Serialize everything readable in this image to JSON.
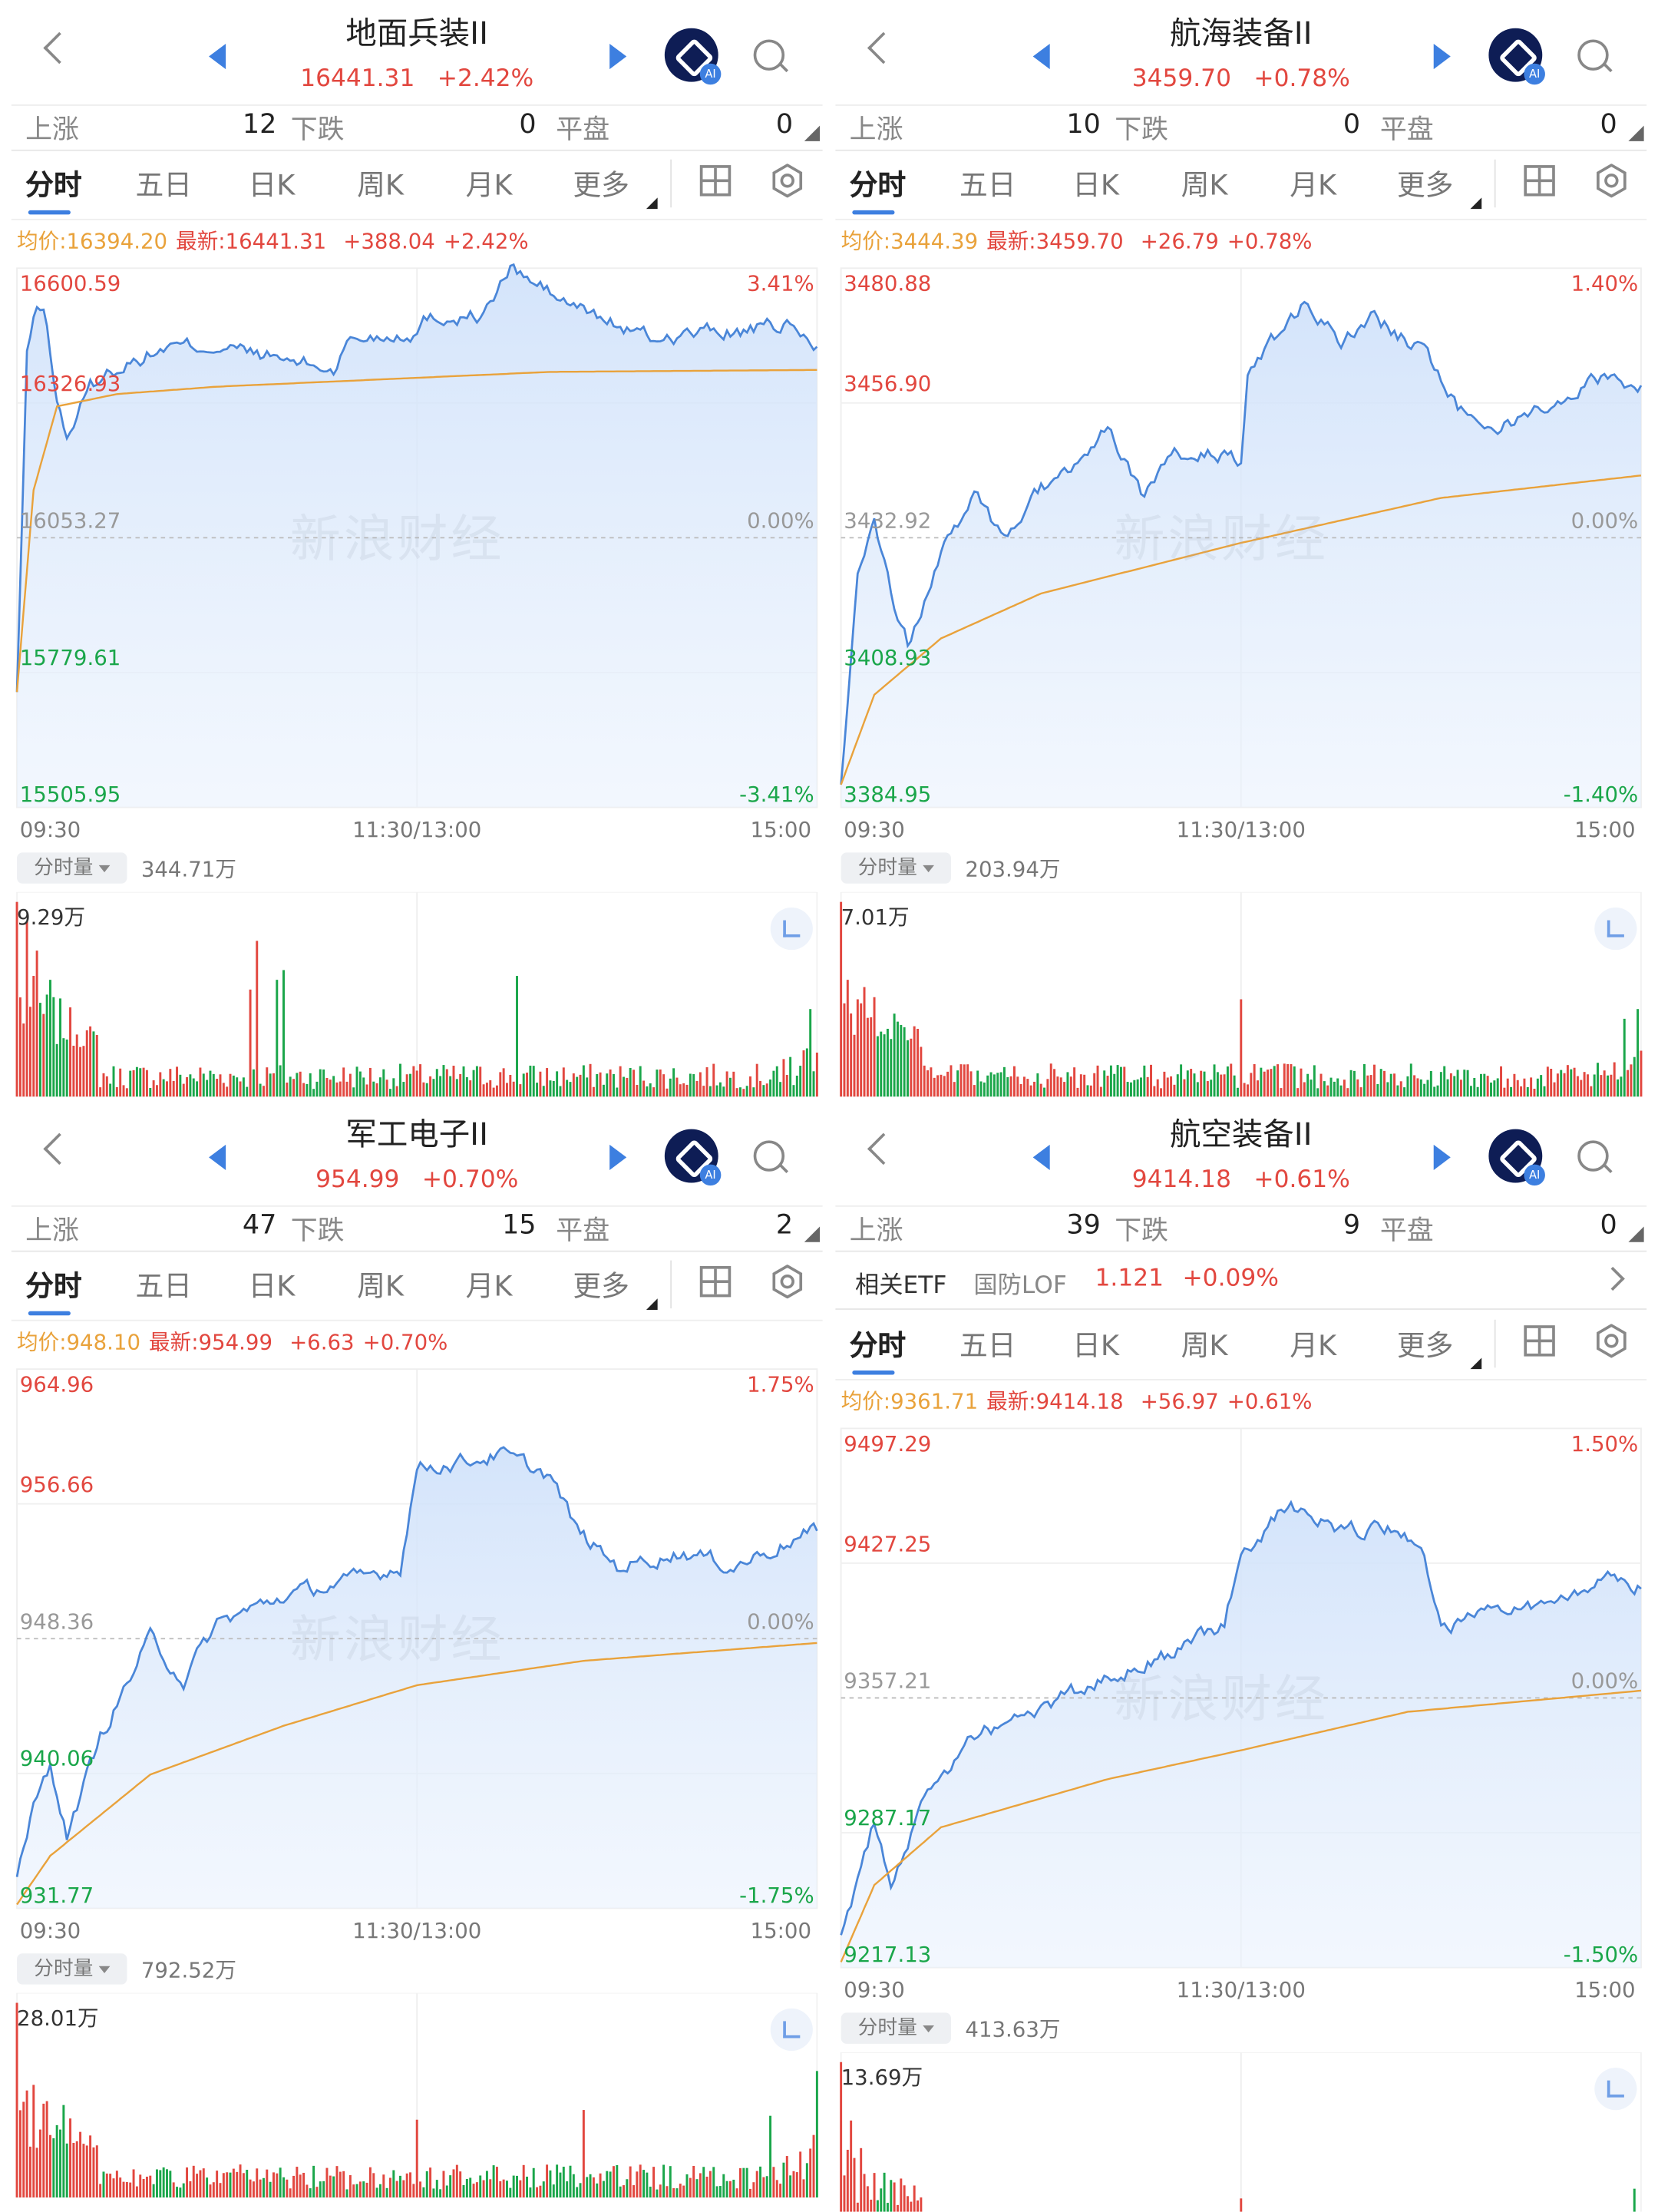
{
  "watermark": "新浪财经",
  "colors": {
    "up": "#e2473f",
    "down": "#1aa64a",
    "avg": "#e9a23b",
    "line": "#4a86d8",
    "accent": "#3d7fe0",
    "gray": "#888888"
  },
  "tabs": [
    "分时",
    "五日",
    "日K",
    "周K",
    "月K",
    "更多"
  ],
  "stats_labels": {
    "up": "上涨",
    "down": "下跌",
    "flat": "平盘"
  },
  "time_labels": [
    "09:30",
    "11:30/13:00",
    "15:00"
  ],
  "volume_button": "分时量",
  "avg_prefix": "均价:",
  "last_prefix": "最新:",
  "panels": [
    {
      "title": "地面兵装II",
      "price": "16441.31",
      "change_pct": "+2.42%",
      "stats": {
        "up": "12",
        "down": "0",
        "flat": "0"
      },
      "info": {
        "avg": "16394.20",
        "last": "16441.31",
        "change": "+388.04",
        "pct": "+2.42%"
      },
      "y_labels": [
        "16600.59",
        "16326.93",
        "16053.27",
        "15779.61",
        "15505.95"
      ],
      "pct_labels": [
        "3.41%",
        "0.00%",
        "-3.41%"
      ],
      "volume_total": "344.71万",
      "volume_max": "9.29万",
      "price_series": [
        [
          0,
          15740
        ],
        [
          3,
          16420
        ],
        [
          5,
          16500
        ],
        [
          8,
          16529
        ],
        [
          12,
          16330
        ],
        [
          15,
          16257
        ],
        [
          22,
          16360
        ],
        [
          30,
          16400
        ],
        [
          45,
          16440
        ],
        [
          60,
          16443
        ],
        [
          80,
          16414
        ],
        [
          95,
          16395
        ],
        [
          100,
          16457
        ],
        [
          120,
          16472
        ],
        [
          123,
          16500
        ],
        [
          140,
          16505
        ],
        [
          148,
          16600
        ],
        [
          165,
          16529
        ],
        [
          190,
          16457
        ],
        [
          205,
          16470
        ],
        [
          220,
          16472
        ],
        [
          230,
          16486
        ],
        [
          240,
          16441
        ]
      ],
      "avg_series": [
        [
          0,
          15740
        ],
        [
          5,
          16150
        ],
        [
          12,
          16320
        ],
        [
          30,
          16345
        ],
        [
          60,
          16360
        ],
        [
          120,
          16378
        ],
        [
          160,
          16390
        ],
        [
          240,
          16394
        ]
      ],
      "volume_spikes": [
        [
          0,
          1.0
        ],
        [
          3,
          0.9
        ],
        [
          6,
          0.75
        ],
        [
          10,
          0.6
        ],
        [
          70,
          0.55
        ],
        [
          72,
          0.8
        ],
        [
          78,
          0.6
        ],
        [
          80,
          0.65
        ],
        [
          150,
          0.62
        ],
        [
          238,
          0.45
        ]
      ]
    },
    {
      "title": "航海装备II",
      "price": "3459.70",
      "change_pct": "+0.78%",
      "stats": {
        "up": "10",
        "down": "0",
        "flat": "0"
      },
      "info": {
        "avg": "3444.39",
        "last": "3459.70",
        "change": "+26.79",
        "pct": "+0.78%"
      },
      "y_labels": [
        "3480.88",
        "3456.90",
        "3432.92",
        "3408.93",
        "3384.95"
      ],
      "pct_labels": [
        "1.40%",
        "0.00%",
        "-1.40%"
      ],
      "volume_total": "203.94万",
      "volume_max": "7.01万",
      "price_series": [
        [
          0,
          3389
        ],
        [
          5,
          3428
        ],
        [
          10,
          3436
        ],
        [
          15,
          3423
        ],
        [
          20,
          3414
        ],
        [
          30,
          3430
        ],
        [
          40,
          3440
        ],
        [
          50,
          3432
        ],
        [
          60,
          3442
        ],
        [
          70,
          3445
        ],
        [
          80,
          3452
        ],
        [
          90,
          3440
        ],
        [
          100,
          3447
        ],
        [
          110,
          3449
        ],
        [
          120,
          3446
        ],
        [
          122,
          3463
        ],
        [
          135,
          3471
        ],
        [
          140,
          3475
        ],
        [
          150,
          3468
        ],
        [
          160,
          3472
        ],
        [
          175,
          3466
        ],
        [
          185,
          3456
        ],
        [
          200,
          3453
        ],
        [
          215,
          3458
        ],
        [
          230,
          3462
        ],
        [
          240,
          3460
        ]
      ],
      "avg_series": [
        [
          0,
          3389
        ],
        [
          10,
          3405
        ],
        [
          30,
          3415
        ],
        [
          60,
          3423
        ],
        [
          120,
          3432
        ],
        [
          180,
          3440
        ],
        [
          240,
          3444
        ]
      ],
      "volume_spikes": [
        [
          0,
          1.0
        ],
        [
          2,
          0.6
        ],
        [
          5,
          0.5
        ],
        [
          120,
          0.5
        ],
        [
          235,
          0.4
        ],
        [
          239,
          0.45
        ]
      ]
    },
    {
      "title": "军工电子II",
      "price": "954.99",
      "change_pct": "+0.70%",
      "stats": {
        "up": "47",
        "down": "15",
        "flat": "2"
      },
      "info": {
        "avg": "948.10",
        "last": "954.99",
        "change": "+6.63",
        "pct": "+0.70%"
      },
      "y_labels": [
        "964.96",
        "956.66",
        "948.36",
        "940.06",
        "931.77"
      ],
      "pct_labels": [
        "1.75%",
        "0.00%",
        "-1.75%"
      ],
      "volume_total": "792.52万",
      "volume_max": "28.01万",
      "price_series": [
        [
          0,
          933.7
        ],
        [
          5,
          938
        ],
        [
          10,
          940.6
        ],
        [
          15,
          936.2
        ],
        [
          25,
          942.3
        ],
        [
          40,
          948.4
        ],
        [
          50,
          945.8
        ],
        [
          60,
          949.3
        ],
        [
          80,
          951
        ],
        [
          100,
          951.9
        ],
        [
          115,
          952.8
        ],
        [
          120,
          958.9
        ],
        [
          135,
          959.3
        ],
        [
          145,
          959.7
        ],
        [
          160,
          958.4
        ],
        [
          168,
          955
        ],
        [
          180,
          952.8
        ],
        [
          200,
          953.7
        ],
        [
          215,
          952.8
        ],
        [
          230,
          954.2
        ],
        [
          240,
          955
        ]
      ],
      "avg_series": [
        [
          0,
          932
        ],
        [
          10,
          935
        ],
        [
          40,
          940
        ],
        [
          80,
          943
        ],
        [
          120,
          945.5
        ],
        [
          170,
          947
        ],
        [
          240,
          948.1
        ]
      ],
      "volume_spikes": [
        [
          0,
          1.0
        ],
        [
          3,
          0.55
        ],
        [
          120,
          0.4
        ],
        [
          170,
          0.45
        ],
        [
          226,
          0.42
        ],
        [
          240,
          0.65
        ]
      ]
    },
    {
      "title": "航空装备II",
      "price": "9414.18",
      "change_pct": "+0.61%",
      "stats": {
        "up": "39",
        "down": "9",
        "flat": "0"
      },
      "etf": {
        "label": "相关ETF",
        "name": "国防LOF",
        "price": "1.121",
        "pct": "+0.09%"
      },
      "info": {
        "avg": "9361.71",
        "last": "9414.18",
        "change": "+56.97",
        "pct": "+0.61%"
      },
      "y_labels": [
        "9497.29",
        "9427.25",
        "9357.21",
        "9287.17",
        "9217.13"
      ],
      "pct_labels": [
        "1.50%",
        "0.00%",
        "-1.50%"
      ],
      "volume_total": "413.63万",
      "volume_max": "13.69万",
      "price_series": [
        [
          0,
          9234
        ],
        [
          10,
          9293
        ],
        [
          15,
          9260
        ],
        [
          25,
          9305
        ],
        [
          40,
          9337
        ],
        [
          60,
          9352
        ],
        [
          80,
          9367
        ],
        [
          100,
          9381
        ],
        [
          115,
          9396
        ],
        [
          120,
          9433
        ],
        [
          135,
          9458
        ],
        [
          150,
          9444
        ],
        [
          165,
          9444
        ],
        [
          175,
          9433
        ],
        [
          180,
          9392
        ],
        [
          200,
          9403
        ],
        [
          220,
          9410
        ],
        [
          230,
          9425
        ],
        [
          240,
          9414
        ]
      ],
      "avg_series": [
        [
          0,
          9220
        ],
        [
          10,
          9260
        ],
        [
          30,
          9290
        ],
        [
          80,
          9315
        ],
        [
          120,
          9330
        ],
        [
          170,
          9350
        ],
        [
          240,
          9361
        ]
      ],
      "volume_spikes": [
        [
          0,
          1.0
        ],
        [
          3,
          0.7
        ],
        [
          120,
          0.3
        ],
        [
          238,
          0.35
        ]
      ]
    }
  ]
}
